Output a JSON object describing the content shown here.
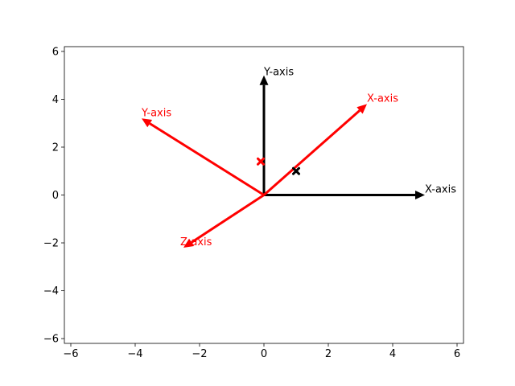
{
  "chart_data": {
    "type": "quiver",
    "title": "",
    "xlabel": "",
    "ylabel": "",
    "xlim": [
      -6.2,
      6.2
    ],
    "ylim": [
      -6.2,
      6.2
    ],
    "xticks": [
      -6,
      -4,
      -2,
      0,
      2,
      4,
      6
    ],
    "yticks": [
      -6,
      -4,
      -2,
      0,
      2,
      4,
      6
    ],
    "grid": false,
    "series": [
      {
        "color": "#000000",
        "origin": [
          0,
          0
        ],
        "vectors": [
          {
            "label": "X-axis",
            "dx": 5,
            "dy": 0,
            "label_at": [
              5,
              0.1
            ]
          },
          {
            "label": "Y-axis",
            "dx": 0,
            "dy": 5,
            "label_at": [
              0,
              5
            ]
          }
        ],
        "point": {
          "x": 1.0,
          "y": 1.0,
          "marker": "X"
        }
      },
      {
        "color": "#ff0000",
        "origin": [
          0,
          0
        ],
        "vectors": [
          {
            "label": "X-axis",
            "dx": 3.2,
            "dy": 3.8,
            "label_at": [
              3.2,
              3.9
            ]
          },
          {
            "label": "Y-axis",
            "dx": -3.8,
            "dy": 3.2,
            "label_at": [
              -3.8,
              3.3
            ]
          },
          {
            "label": "Z-axis",
            "dx": -2.5,
            "dy": -2.2,
            "label_at": [
              -2.6,
              -2.1
            ]
          }
        ],
        "point": {
          "x": -0.1,
          "y": 1.4,
          "marker": "X"
        }
      }
    ]
  }
}
